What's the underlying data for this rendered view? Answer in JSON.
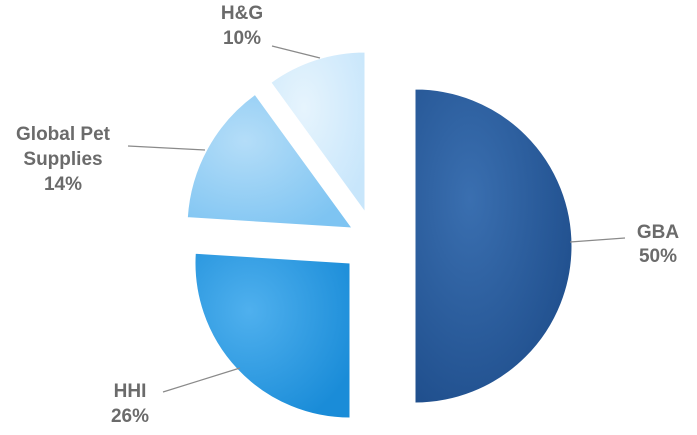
{
  "chart_data": {
    "type": "pie",
    "exploded": true,
    "slices": [
      {
        "name": "GBA",
        "value": 50,
        "label_lines": [
          "GBA",
          "50%"
        ],
        "color": "#1f4e8c",
        "color_light": "#3a6fb0"
      },
      {
        "name": "HHI",
        "value": 26,
        "label_lines": [
          "HHI",
          "26%"
        ],
        "color": "#1a8cd8",
        "color_light": "#4fb0ee"
      },
      {
        "name": "Global Pet Supplies",
        "value": 14,
        "label_lines": [
          "Global Pet",
          "Supplies",
          "14%"
        ],
        "color": "#7ec4f2",
        "color_light": "#b4ddf8"
      },
      {
        "name": "H&G",
        "value": 10,
        "label_lines": [
          "H&G",
          "10%"
        ],
        "color": "#c8e6fb",
        "color_light": "#e6f4fd"
      }
    ],
    "legend": "none",
    "label_color": "#6b6b6b"
  }
}
